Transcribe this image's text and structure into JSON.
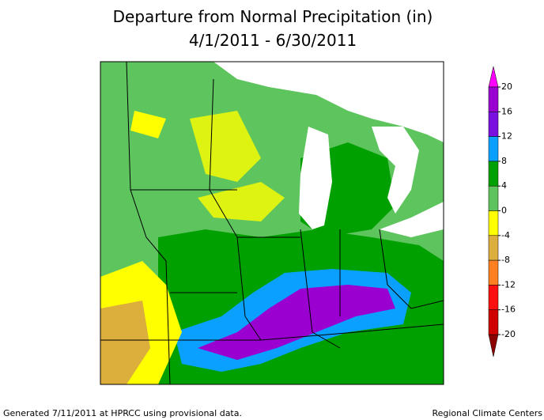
{
  "header": {
    "title": "Departure from Normal Precipitation (in)",
    "subtitle": "4/1/2011 - 6/30/2011"
  },
  "legend": {
    "ticks": [
      20,
      16,
      12,
      8,
      4,
      0,
      -4,
      -8,
      -12,
      -16,
      -20
    ],
    "colors": [
      "#ff00ff",
      "#9a00d0",
      "#7a10e0",
      "#0aa0ff",
      "#00a000",
      "#5ec45e",
      "#ffff00",
      "#dcae3c",
      "#ff8020",
      "#ff1010",
      "#d00000",
      "#8c0000"
    ]
  },
  "footer": {
    "left": "Generated 7/11/2011 at HPRCC using provisional data.",
    "right": "Regional Climate Centers"
  }
}
